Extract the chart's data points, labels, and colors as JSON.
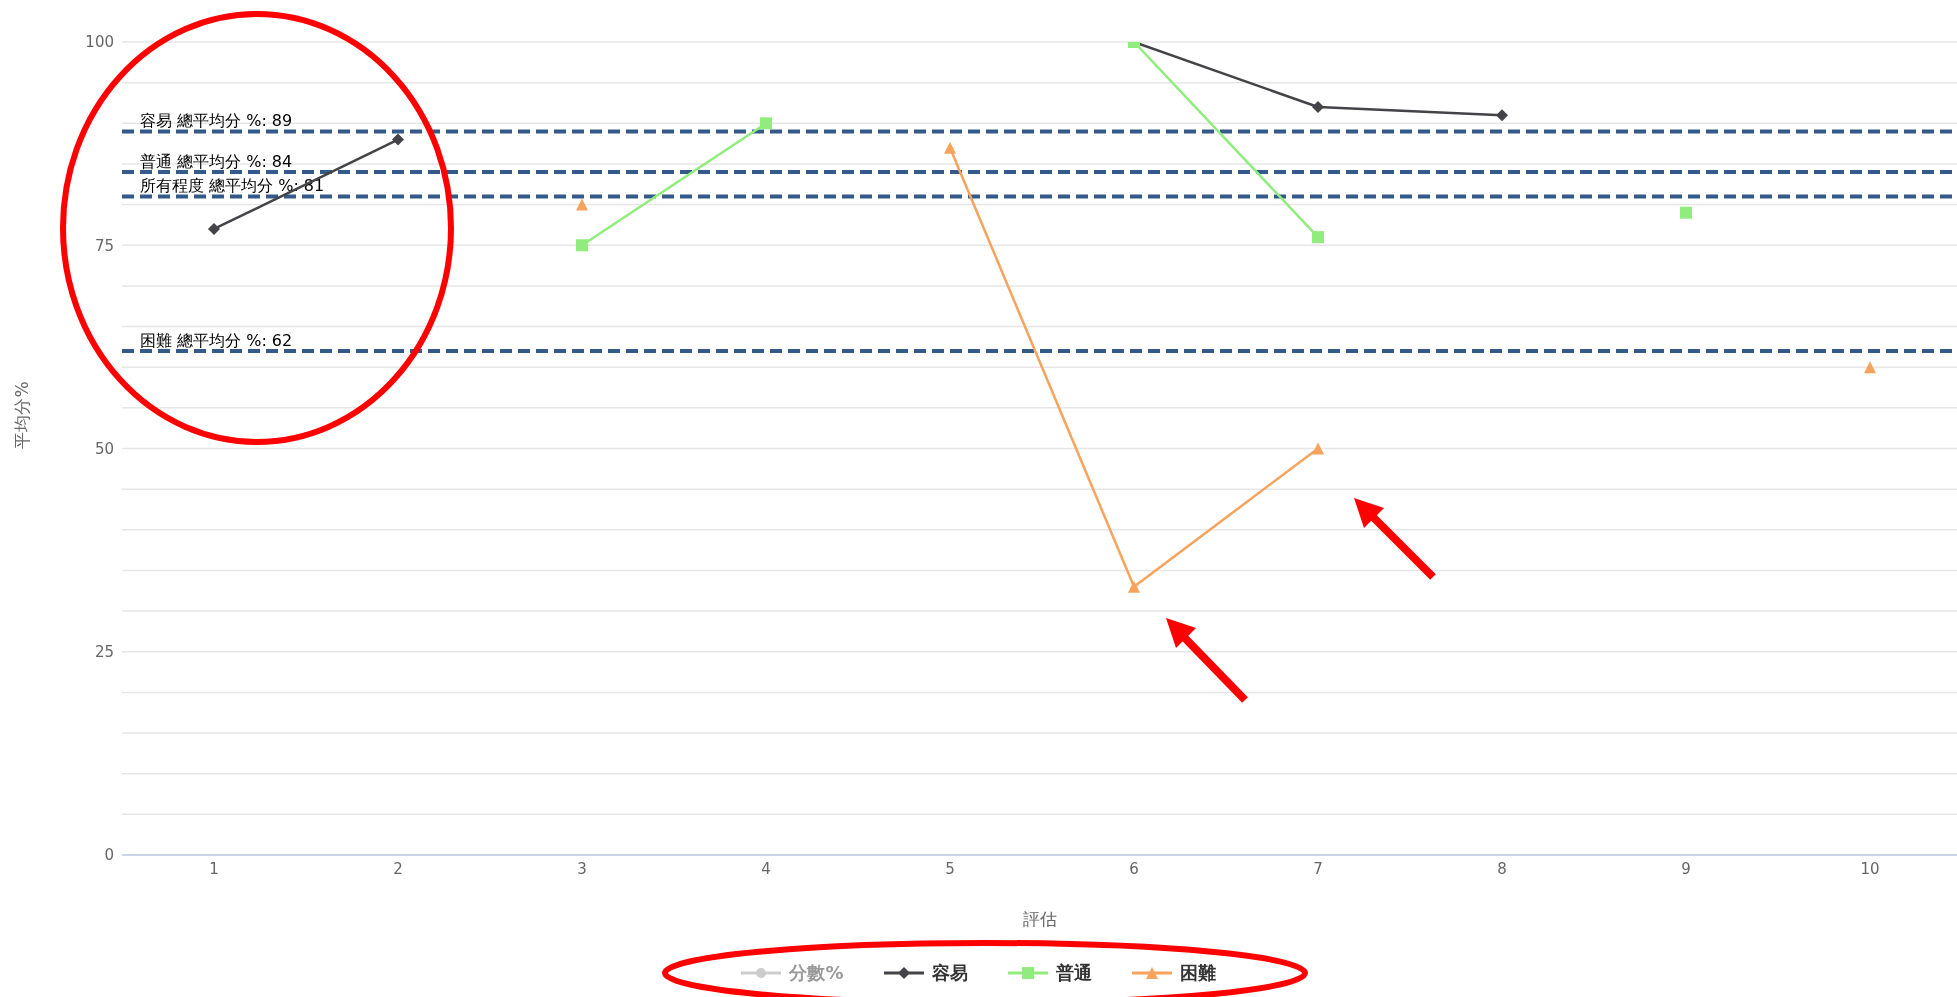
{
  "chart_data": {
    "type": "line",
    "xlabel": "評估",
    "ylabel": "平均分%",
    "categories": [
      "1",
      "2",
      "3",
      "4",
      "5",
      "6",
      "7",
      "8",
      "9",
      "10"
    ],
    "ylim": [
      0,
      100
    ],
    "yticks": [
      0,
      {
        "value": 5,
        "label": null
      },
      {
        "value": 10,
        "label": null
      },
      {
        "value": 15,
        "label": null
      },
      {
        "value": 20,
        "label": null
      },
      25,
      {
        "value": 30,
        "label": null
      },
      {
        "value": 35,
        "label": null
      },
      {
        "value": 40,
        "label": null
      },
      {
        "value": 45,
        "label": null
      },
      50,
      {
        "value": 55,
        "label": null
      },
      {
        "value": 60,
        "label": null
      },
      {
        "value": 65,
        "label": null
      },
      {
        "value": 70,
        "label": null
      },
      75,
      {
        "value": 80,
        "label": null
      },
      {
        "value": 85,
        "label": null
      },
      {
        "value": 90,
        "label": null
      },
      {
        "value": 95,
        "label": null
      },
      100
    ],
    "grid": "y",
    "legend": "bottom",
    "series": [
      {
        "name": "分數%",
        "color": "#cccccc",
        "marker": "circle",
        "values": [
          null,
          null,
          null,
          null,
          null,
          null,
          null,
          null,
          null,
          null
        ]
      },
      {
        "name": "容易",
        "color": "#434348",
        "marker": "diamond",
        "values": [
          77,
          88,
          null,
          null,
          null,
          100,
          92,
          91,
          null,
          null
        ]
      },
      {
        "name": "普通",
        "color": "#90ed7d",
        "marker": "square",
        "values": [
          null,
          null,
          75,
          90,
          null,
          100,
          76,
          null,
          79,
          null
        ]
      },
      {
        "name": "困難",
        "color": "#f7a35c",
        "marker": "triangle",
        "values": [
          null,
          null,
          80,
          null,
          87,
          33,
          50,
          null,
          null,
          60
        ]
      }
    ],
    "ref_lines": [
      {
        "axis": "y",
        "value": 89,
        "label": "容易 總平均分 %:  89",
        "color": "#345a8a",
        "line_style": "dashed"
      },
      {
        "axis": "y",
        "value": 84,
        "label": "普通 總平均分 %:  84",
        "color": "#345a8a",
        "line_style": "dashed"
      },
      {
        "axis": "y",
        "value": 81,
        "label": "所有程度 總平均分 %:  81",
        "color": "#345a8a",
        "line_style": "dashed"
      },
      {
        "axis": "y",
        "value": 62,
        "label": "困難 總平均分 %:  62",
        "color": "#345a8a",
        "line_style": "dashed"
      }
    ]
  }
}
